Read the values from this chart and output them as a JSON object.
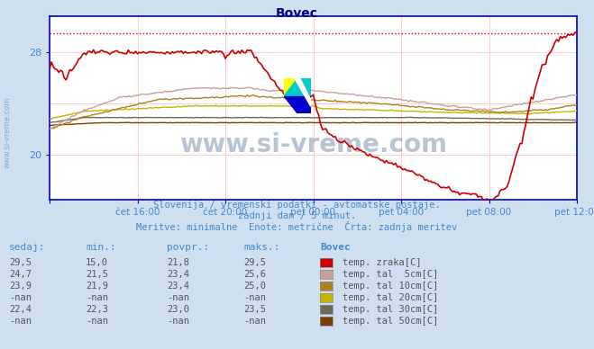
{
  "title": "Bovec",
  "bg_color": "#d0dff0",
  "plot_bg_color": "#ffffff",
  "axis_color": "#0000cc",
  "grid_color_v": "#ffcccc",
  "grid_color_h": "#ffcccc",
  "text_color": "#4488cc",
  "subtitle1": "Slovenija / vremenski podatki - avtomatske postaje.",
  "subtitle2": "zadnji dan / 5 minut.",
  "subtitle3": "Meritve: minimalne  Enote: metrične  Črta: zadnja meritev",
  "xlabel_ticks": [
    "čet 16:00",
    "čet 20:00",
    "pet 00:00",
    "pet 04:00",
    "pet 08:00",
    "pet 12:00"
  ],
  "yticks": [
    20,
    28
  ],
  "ymin": 16.5,
  "ymax": 30.8,
  "xmin": 0,
  "xmax": 288,
  "max_line_y": 29.5,
  "watermark": "www.si-vreme.com",
  "legend": [
    {
      "label": "temp. zraka[C]",
      "color": "#cc0000"
    },
    {
      "label": "temp. tal  5cm[C]",
      "color": "#c8a096"
    },
    {
      "label": "temp. tal 10cm[C]",
      "color": "#b08020"
    },
    {
      "label": "temp. tal 20cm[C]",
      "color": "#c8b400"
    },
    {
      "label": "temp. tal 30cm[C]",
      "color": "#706858"
    },
    {
      "label": "temp. tal 50cm[C]",
      "color": "#784000"
    }
  ],
  "table_headers": [
    "sedaj:",
    "min.:",
    "povpr.:",
    "maks.:",
    "Bovec"
  ],
  "table_rows": [
    [
      "29,5",
      "15,0",
      "21,8",
      "29,5"
    ],
    [
      "24,7",
      "21,5",
      "23,4",
      "25,6"
    ],
    [
      "23,9",
      "21,9",
      "23,4",
      "25,0"
    ],
    [
      "-nan",
      "-nan",
      "-nan",
      "-nan"
    ],
    [
      "22,4",
      "22,3",
      "23,0",
      "23,5"
    ],
    [
      "-nan",
      "-nan",
      "-nan",
      "-nan"
    ]
  ]
}
